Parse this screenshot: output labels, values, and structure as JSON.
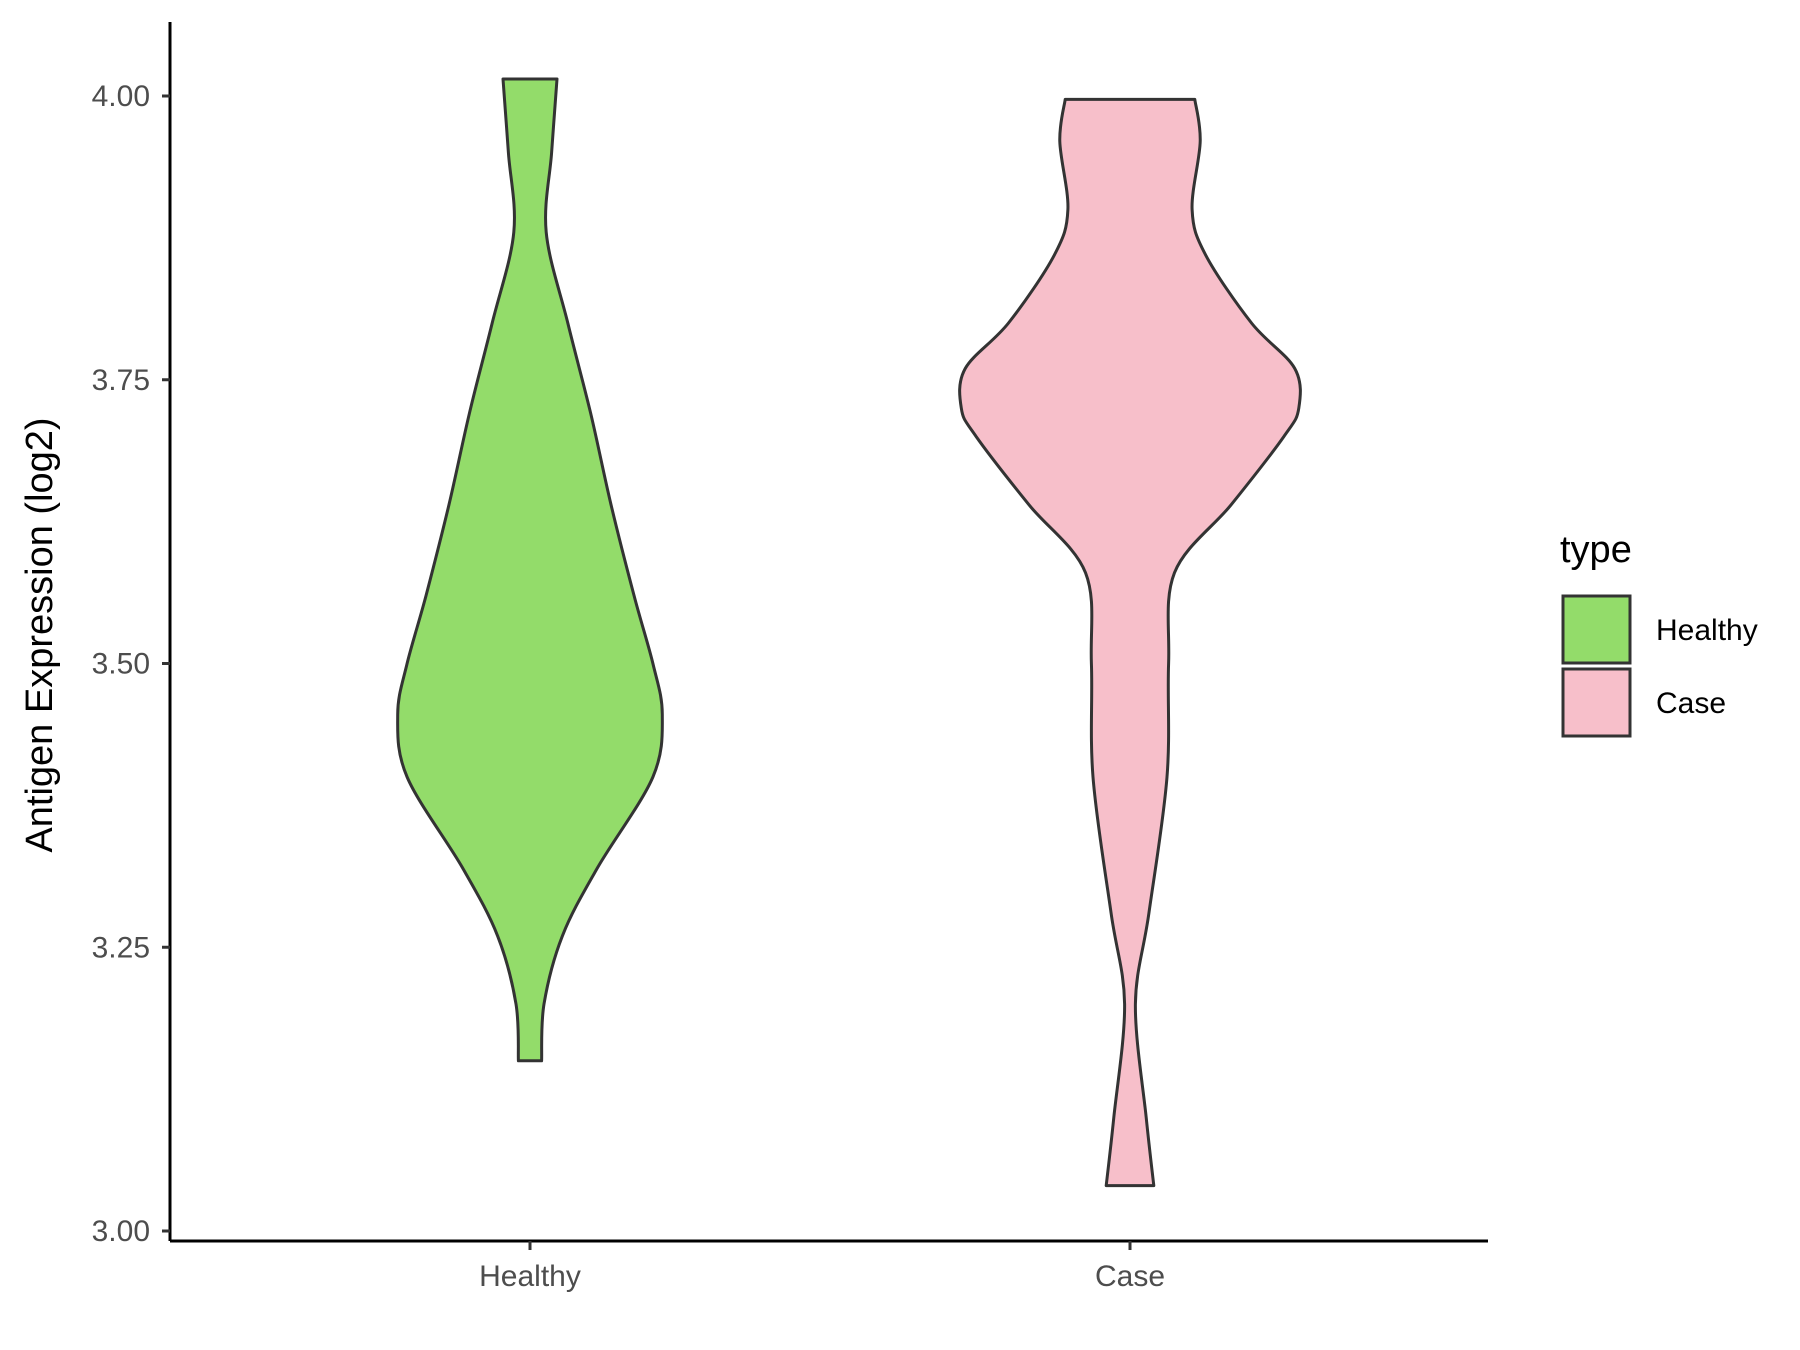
{
  "chart_data": {
    "type": "violin",
    "title": "",
    "xlabel": "",
    "ylabel": "Antigen Expression (log2)",
    "ylim": [
      2.99,
      4.06
    ],
    "yticks": [
      "3.00",
      "3.25",
      "3.50",
      "3.75",
      "4.00"
    ],
    "categories": [
      "Healthy",
      "Case"
    ],
    "legend": {
      "title": "type",
      "position": "right",
      "entries": [
        {
          "label": "Healthy",
          "color": "#93DC6A"
        },
        {
          "label": "Case",
          "color": "#F7BFCA"
        }
      ]
    },
    "grid": false,
    "series": [
      {
        "category": "Healthy",
        "color": "#93DC6A",
        "min": 3.15,
        "max": 4.015,
        "profile": [
          [
            3.15,
            0.043
          ],
          [
            3.2,
            0.052
          ],
          [
            3.26,
            0.12
          ],
          [
            3.32,
            0.25
          ],
          [
            3.4,
            0.455
          ],
          [
            3.455,
            0.49
          ],
          [
            3.5,
            0.455
          ],
          [
            3.56,
            0.385
          ],
          [
            3.64,
            0.3
          ],
          [
            3.72,
            0.225
          ],
          [
            3.8,
            0.14
          ],
          [
            3.88,
            0.06
          ],
          [
            3.95,
            0.08
          ],
          [
            4.015,
            0.1
          ]
        ]
      },
      {
        "category": "Case",
        "color": "#F7BFCA",
        "min": 3.04,
        "max": 3.997,
        "profile": [
          [
            3.04,
            0.088
          ],
          [
            3.1,
            0.06
          ],
          [
            3.2,
            0.02
          ],
          [
            3.28,
            0.07
          ],
          [
            3.4,
            0.137
          ],
          [
            3.5,
            0.143
          ],
          [
            3.58,
            0.165
          ],
          [
            3.64,
            0.375
          ],
          [
            3.7,
            0.57
          ],
          [
            3.725,
            0.625
          ],
          [
            3.76,
            0.61
          ],
          [
            3.8,
            0.45
          ],
          [
            3.86,
            0.28
          ],
          [
            3.9,
            0.23
          ],
          [
            3.96,
            0.26
          ],
          [
            3.997,
            0.24
          ]
        ]
      }
    ]
  }
}
